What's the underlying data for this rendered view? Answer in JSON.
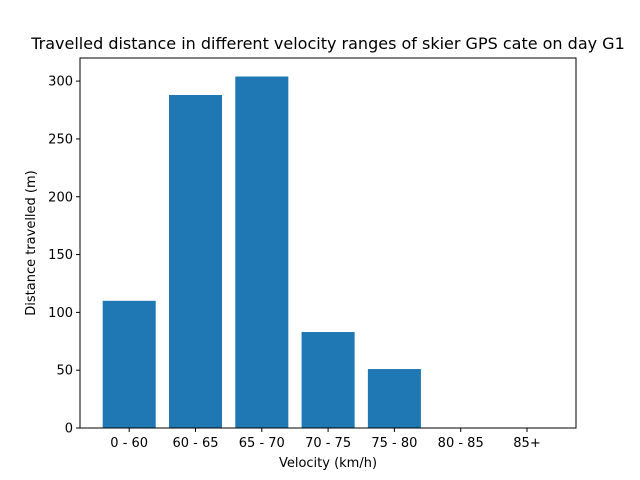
{
  "chart_data": {
    "type": "bar",
    "title": "Travelled distance in different velocity ranges of skier GPS cate on day G1",
    "xlabel": "Velocity (km/h)",
    "ylabel": "Distance travelled (m)",
    "categories": [
      "0 - 60",
      "60 - 65",
      "65 - 70",
      "70 - 75",
      "75 - 80",
      "80 - 85",
      "85+"
    ],
    "values": [
      110,
      288,
      304,
      83,
      51,
      0,
      0
    ],
    "ylim": [
      0,
      320
    ],
    "yticks": [
      0,
      50,
      100,
      150,
      200,
      250,
      300
    ],
    "grid": false,
    "colors": {
      "bar": "#1f77b4",
      "axis": "#000000"
    }
  }
}
